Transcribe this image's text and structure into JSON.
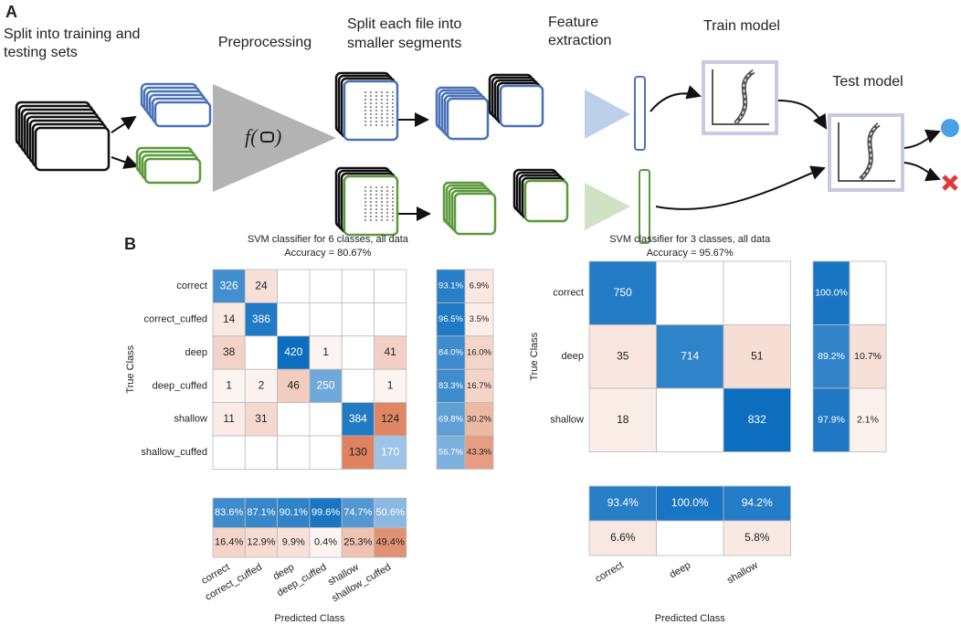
{
  "panel_a": {
    "label": "A",
    "steps": [
      [
        "Split into training and",
        "testing sets"
      ],
      [
        "Preprocessing"
      ],
      [
        "Split each file into",
        "smaller segments"
      ],
      [
        "Feature",
        "extraction"
      ],
      [
        "Train model"
      ],
      [
        "Test model"
      ]
    ]
  },
  "panel_b": {
    "label": "B",
    "matrices": [
      {
        "title": "SVM classifier for 6 classes, all data",
        "accuracy": "Accuracy = 80.67%",
        "y_label": "True Class",
        "x_label": "Predicted Class",
        "classes": [
          "correct",
          "correct_cuffed",
          "deep",
          "deep_cuffed",
          "shallow",
          "shallow_cuffed"
        ],
        "cells": [
          [
            326,
            24,
            null,
            null,
            null,
            null
          ],
          [
            14,
            386,
            null,
            null,
            null,
            null
          ],
          [
            38,
            null,
            420,
            1,
            null,
            41
          ],
          [
            1,
            2,
            46,
            250,
            null,
            1
          ],
          [
            11,
            31,
            null,
            null,
            384,
            124
          ],
          [
            null,
            null,
            null,
            null,
            130,
            170
          ]
        ],
        "row_summary": [
          [
            "93.1%",
            "6.9%"
          ],
          [
            "96.5%",
            "3.5%"
          ],
          [
            "84.0%",
            "16.0%"
          ],
          [
            "83.3%",
            "16.7%"
          ],
          [
            "69.8%",
            "30.2%"
          ],
          [
            "56.7%",
            "43.3%"
          ]
        ],
        "col_summary": [
          [
            "83.6%",
            "87.1%",
            "90.1%",
            "99.6%",
            "74.7%",
            "50.6%"
          ],
          [
            "16.4%",
            "12.9%",
            "9.9%",
            "0.4%",
            "25.3%",
            "49.4%"
          ]
        ]
      },
      {
        "title": "SVM classifier for 3 classes, all data",
        "accuracy": "Accuracy = 95.67%",
        "y_label": "True Class",
        "x_label": "Predicted Class",
        "classes": [
          "correct",
          "deep",
          "shallow"
        ],
        "cells": [
          [
            750,
            null,
            null
          ],
          [
            35,
            714,
            51
          ],
          [
            18,
            null,
            832
          ]
        ],
        "row_summary": [
          [
            "100.0%",
            null
          ],
          [
            "89.2%",
            "10.7%"
          ],
          [
            "97.9%",
            "2.1%"
          ]
        ],
        "col_summary": [
          [
            "93.4%",
            "100.0%",
            "94.2%"
          ],
          [
            "6.6%",
            null,
            "5.8%"
          ]
        ]
      }
    ]
  }
}
